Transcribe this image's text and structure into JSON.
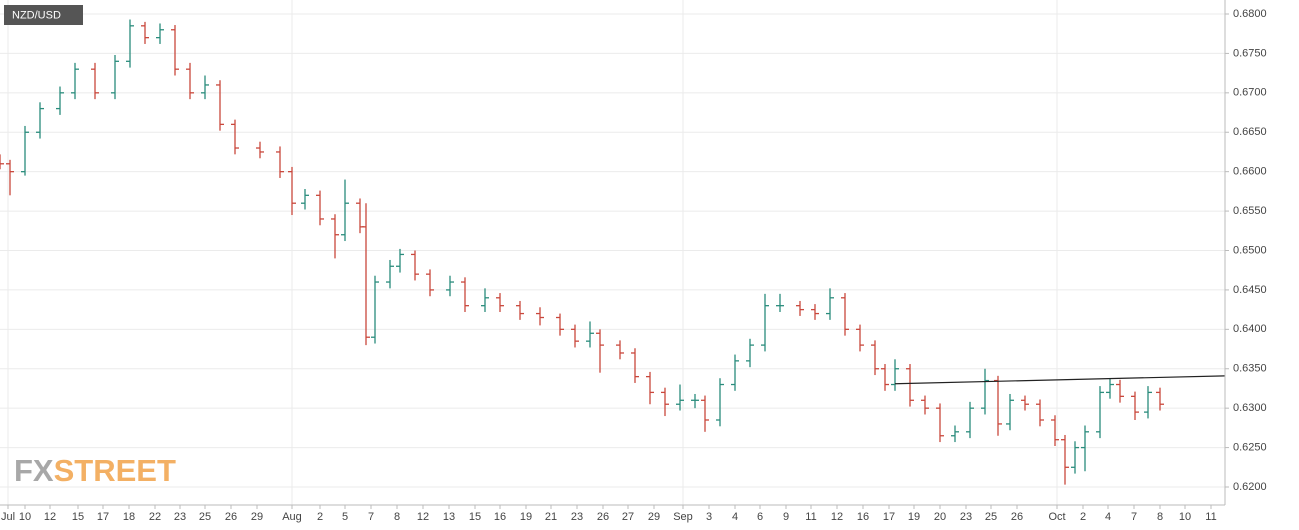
{
  "chart_data": {
    "type": "ohlc",
    "title": "NZD/USD",
    "logo_prefix": "FX",
    "logo_suffix": "STREET",
    "up_color": "#2a8c7c",
    "down_color": "#c9473c",
    "grid": true,
    "xlim": [
      0,
      1225
    ],
    "ylim": [
      0.62,
      0.68
    ],
    "yticks": [
      {
        "value": 0.62,
        "label": "0.6200"
      },
      {
        "value": 0.625,
        "label": "0.6250"
      },
      {
        "value": 0.63,
        "label": "0.6300"
      },
      {
        "value": 0.635,
        "label": "0.6350"
      },
      {
        "value": 0.64,
        "label": "0.6400"
      },
      {
        "value": 0.645,
        "label": "0.6450"
      },
      {
        "value": 0.65,
        "label": "0.6500"
      },
      {
        "value": 0.655,
        "label": "0.6550"
      },
      {
        "value": 0.66,
        "label": "0.6600"
      },
      {
        "value": 0.665,
        "label": "0.6650"
      },
      {
        "value": 0.67,
        "label": "0.6700"
      },
      {
        "value": 0.675,
        "label": "0.6750"
      },
      {
        "value": 0.68,
        "label": "0.6800"
      }
    ],
    "xticks": [
      {
        "value": 8,
        "label": "Jul"
      },
      {
        "value": 25,
        "label": "10"
      },
      {
        "value": 50,
        "label": "12"
      },
      {
        "value": 78,
        "label": "15"
      },
      {
        "value": 103,
        "label": "17"
      },
      {
        "value": 129,
        "label": "18"
      },
      {
        "value": 155,
        "label": "22"
      },
      {
        "value": 180,
        "label": "23"
      },
      {
        "value": 205,
        "label": "25"
      },
      {
        "value": 231,
        "label": "26"
      },
      {
        "value": 257,
        "label": "29"
      },
      {
        "value": 292,
        "label": "Aug"
      },
      {
        "value": 320,
        "label": "2"
      },
      {
        "value": 345,
        "label": "5"
      },
      {
        "value": 371,
        "label": "7"
      },
      {
        "value": 397,
        "label": "8"
      },
      {
        "value": 423,
        "label": "12"
      },
      {
        "value": 449,
        "label": "13"
      },
      {
        "value": 475,
        "label": "15"
      },
      {
        "value": 500,
        "label": "16"
      },
      {
        "value": 526,
        "label": "19"
      },
      {
        "value": 551,
        "label": "21"
      },
      {
        "value": 577,
        "label": "23"
      },
      {
        "value": 603,
        "label": "26"
      },
      {
        "value": 628,
        "label": "27"
      },
      {
        "value": 654,
        "label": "29"
      },
      {
        "value": 683,
        "label": "Sep"
      },
      {
        "value": 709,
        "label": "3"
      },
      {
        "value": 735,
        "label": "4"
      },
      {
        "value": 760,
        "label": "6"
      },
      {
        "value": 786,
        "label": "9"
      },
      {
        "value": 811,
        "label": "11"
      },
      {
        "value": 837,
        "label": "12"
      },
      {
        "value": 863,
        "label": "16"
      },
      {
        "value": 889,
        "label": "17"
      },
      {
        "value": 914,
        "label": "19"
      },
      {
        "value": 940,
        "label": "20"
      },
      {
        "value": 966,
        "label": "23"
      },
      {
        "value": 991,
        "label": "25"
      },
      {
        "value": 1017,
        "label": "26"
      },
      {
        "value": 1057,
        "label": "Oct"
      },
      {
        "value": 1083,
        "label": "2"
      },
      {
        "value": 1108,
        "label": "4"
      },
      {
        "value": 1134,
        "label": "7"
      },
      {
        "value": 1160,
        "label": "8"
      },
      {
        "value": 1185,
        "label": "10"
      },
      {
        "value": 1211,
        "label": "11"
      }
    ],
    "x": [
      0,
      10,
      25,
      40,
      60,
      75,
      95,
      115,
      130,
      145,
      160,
      175,
      190,
      205,
      220,
      235,
      260,
      280,
      292,
      305,
      320,
      335,
      345,
      360,
      366,
      375,
      390,
      400,
      415,
      430,
      450,
      465,
      485,
      500,
      520,
      540,
      560,
      575,
      590,
      600,
      620,
      635,
      650,
      665,
      680,
      695,
      705,
      720,
      735,
      750,
      765,
      780,
      800,
      815,
      830,
      845,
      860,
      875,
      885,
      895,
      910,
      925,
      940,
      955,
      970,
      985,
      998,
      1010,
      1025,
      1040,
      1055,
      1065,
      1075,
      1085,
      1100,
      1110,
      1120,
      1135,
      1148,
      1160
    ],
    "open": [
      0.6615,
      0.661,
      0.66,
      0.665,
      0.668,
      0.67,
      0.673,
      0.67,
      0.674,
      0.6785,
      0.677,
      0.678,
      0.673,
      0.67,
      0.671,
      0.666,
      0.663,
      0.6625,
      0.66,
      0.656,
      0.657,
      0.654,
      0.652,
      0.656,
      0.653,
      0.639,
      0.646,
      0.648,
      0.6495,
      0.647,
      0.645,
      0.646,
      0.643,
      0.644,
      0.643,
      0.642,
      0.6415,
      0.64,
      0.6385,
      0.6395,
      0.638,
      0.637,
      0.634,
      0.632,
      0.6305,
      0.631,
      0.631,
      0.6285,
      0.633,
      0.636,
      0.638,
      0.643,
      0.643,
      0.6425,
      0.642,
      0.644,
      0.64,
      0.638,
      0.635,
      0.633,
      0.635,
      0.631,
      0.63,
      0.6265,
      0.627,
      0.63,
      0.6335,
      0.628,
      0.631,
      0.6305,
      0.6285,
      0.626,
      0.6225,
      0.625,
      0.627,
      0.632,
      0.633,
      0.6315,
      0.6295,
      0.632
    ],
    "high": [
      0.6622,
      0.6615,
      0.6658,
      0.6688,
      0.6708,
      0.6738,
      0.6738,
      0.6748,
      0.6793,
      0.679,
      0.6788,
      0.6786,
      0.6738,
      0.6722,
      0.6716,
      0.6666,
      0.6638,
      0.6632,
      0.6606,
      0.6578,
      0.6576,
      0.6546,
      0.659,
      0.6566,
      0.656,
      0.6468,
      0.6488,
      0.6502,
      0.65,
      0.6476,
      0.6468,
      0.6466,
      0.6452,
      0.6446,
      0.6436,
      0.6428,
      0.642,
      0.6406,
      0.641,
      0.64,
      0.6386,
      0.6376,
      0.6346,
      0.6326,
      0.633,
      0.6318,
      0.6316,
      0.6338,
      0.6368,
      0.6388,
      0.6445,
      0.6445,
      0.6436,
      0.6432,
      0.6452,
      0.6446,
      0.6406,
      0.6386,
      0.6356,
      0.6362,
      0.6356,
      0.6316,
      0.6306,
      0.6278,
      0.6308,
      0.635,
      0.6341,
      0.6318,
      0.6316,
      0.6311,
      0.6291,
      0.6266,
      0.6258,
      0.6278,
      0.6328,
      0.6338,
      0.6336,
      0.6321,
      0.6328,
      0.6326
    ],
    "low": [
      0.6603,
      0.657,
      0.6595,
      0.6642,
      0.6672,
      0.6692,
      0.6692,
      0.6692,
      0.6732,
      0.6762,
      0.6762,
      0.6722,
      0.6692,
      0.6692,
      0.6652,
      0.6622,
      0.6617,
      0.6592,
      0.6545,
      0.6552,
      0.6532,
      0.649,
      0.6512,
      0.6522,
      0.638,
      0.6382,
      0.6452,
      0.6472,
      0.6462,
      0.6442,
      0.6442,
      0.6422,
      0.6422,
      0.6422,
      0.6412,
      0.6405,
      0.6392,
      0.6377,
      0.6377,
      0.6345,
      0.6362,
      0.6332,
      0.6305,
      0.629,
      0.6297,
      0.63,
      0.627,
      0.6277,
      0.6322,
      0.6352,
      0.6372,
      0.6422,
      0.6417,
      0.6412,
      0.6412,
      0.6392,
      0.6372,
      0.6342,
      0.6322,
      0.6322,
      0.6302,
      0.6292,
      0.6257,
      0.6257,
      0.6262,
      0.6292,
      0.6265,
      0.6272,
      0.6297,
      0.6277,
      0.6252,
      0.6203,
      0.6217,
      0.622,
      0.6262,
      0.6312,
      0.6307,
      0.6285,
      0.6287,
      0.6297
    ],
    "close": [
      0.661,
      0.66,
      0.665,
      0.668,
      0.67,
      0.673,
      0.67,
      0.674,
      0.6785,
      0.677,
      0.678,
      0.673,
      0.67,
      0.671,
      0.666,
      0.663,
      0.6625,
      0.66,
      0.656,
      0.657,
      0.654,
      0.652,
      0.656,
      0.653,
      0.639,
      0.646,
      0.648,
      0.6495,
      0.647,
      0.645,
      0.646,
      0.643,
      0.644,
      0.643,
      0.642,
      0.6415,
      0.64,
      0.6385,
      0.6395,
      0.638,
      0.637,
      0.634,
      0.632,
      0.6305,
      0.631,
      0.631,
      0.6285,
      0.633,
      0.636,
      0.638,
      0.643,
      0.643,
      0.6425,
      0.642,
      0.644,
      0.64,
      0.638,
      0.635,
      0.633,
      0.635,
      0.631,
      0.63,
      0.6265,
      0.627,
      0.63,
      0.6335,
      0.628,
      0.631,
      0.6305,
      0.6285,
      0.626,
      0.6225,
      0.625,
      0.627,
      0.632,
      0.633,
      0.6315,
      0.6295,
      0.632,
      0.6305
    ],
    "trendline": {
      "x": [
        895,
        1225
      ],
      "y": [
        0.6331,
        0.6341
      ],
      "color": "#222222"
    }
  }
}
